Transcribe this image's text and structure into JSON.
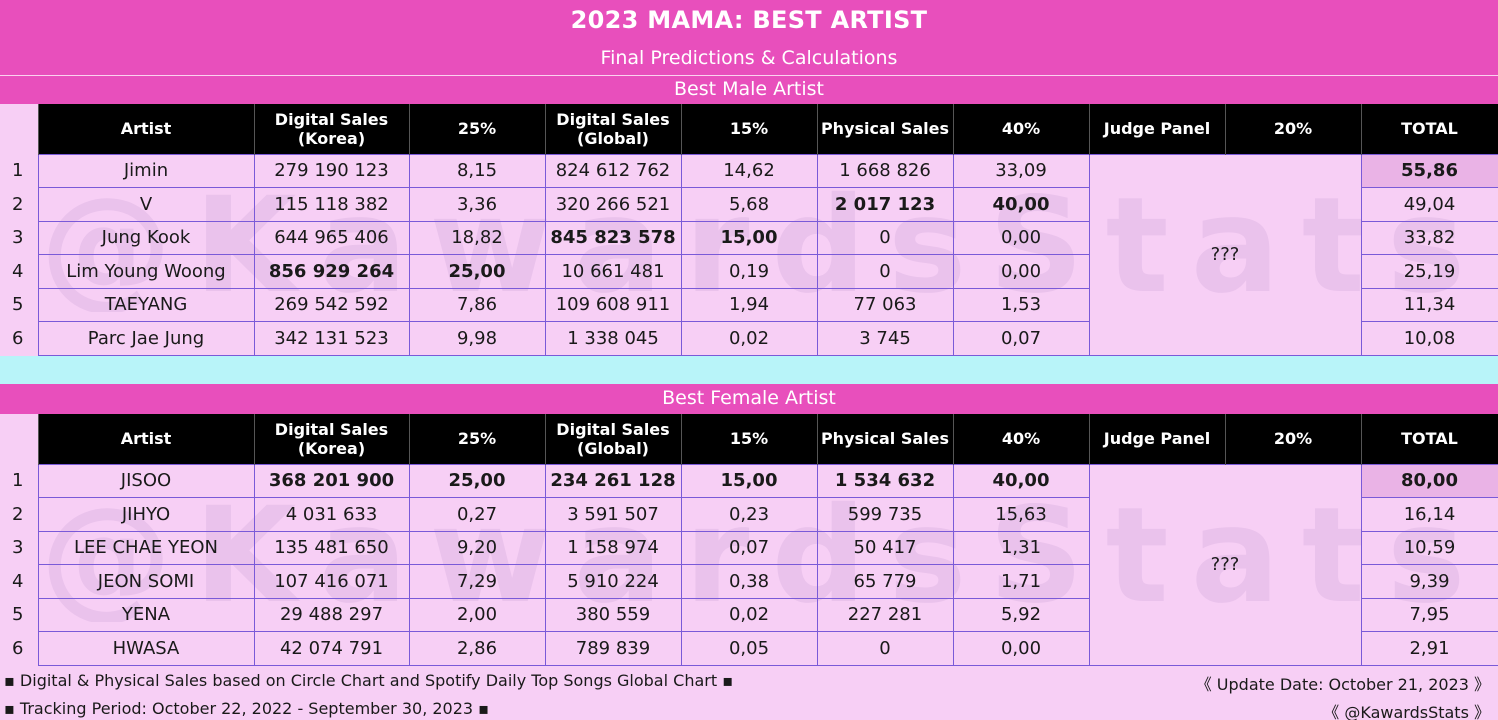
{
  "title": "2023 MAMA: BEST ARTIST",
  "subtitle": "Final Predictions & Calculations",
  "columns": [
    "Artist",
    "Digital Sales (Korea)",
    "25%",
    "Digital Sales (Global)",
    "15%",
    "Physical Sales",
    "40%",
    "Judge Panel",
    "20%",
    "TOTAL"
  ],
  "watermark": "@KawardsStats",
  "male": {
    "title": "Best Male Artist",
    "judge": "???",
    "rows": [
      {
        "rank": "1",
        "artist": "Jimin",
        "dk": "279 190 123",
        "p25": "8,15",
        "dg": "824 612 762",
        "p15": "14,62",
        "ph": "1 668 826",
        "p40": "33,09",
        "total": "55,86"
      },
      {
        "rank": "2",
        "artist": "V",
        "dk": "115 118 382",
        "p25": "3,36",
        "dg": "320 266 521",
        "p15": "5,68",
        "ph": "2 017 123",
        "p40": "40,00",
        "total": "49,04"
      },
      {
        "rank": "3",
        "artist": "Jung Kook",
        "dk": "644 965 406",
        "p25": "18,82",
        "dg": "845 823 578",
        "p15": "15,00",
        "ph": "0",
        "p40": "0,00",
        "total": "33,82"
      },
      {
        "rank": "4",
        "artist": "Lim Young Woong",
        "dk": "856 929 264",
        "p25": "25,00",
        "dg": "10 661 481",
        "p15": "0,19",
        "ph": "0",
        "p40": "0,00",
        "total": "25,19"
      },
      {
        "rank": "5",
        "artist": "TAEYANG",
        "dk": "269 542 592",
        "p25": "7,86",
        "dg": "109 608 911",
        "p15": "1,94",
        "ph": "77 063",
        "p40": "1,53",
        "total": "11,34"
      },
      {
        "rank": "6",
        "artist": "Parc Jae Jung",
        "dk": "342 131 523",
        "p25": "9,98",
        "dg": "1 338 045",
        "p15": "0,02",
        "ph": "3 745",
        "p40": "0,07",
        "total": "10,08"
      }
    ]
  },
  "female": {
    "title": "Best Female Artist",
    "judge": "???",
    "rows": [
      {
        "rank": "1",
        "artist": "JISOO",
        "dk": "368 201 900",
        "p25": "25,00",
        "dg": "234 261 128",
        "p15": "15,00",
        "ph": "1 534 632",
        "p40": "40,00",
        "total": "80,00"
      },
      {
        "rank": "2",
        "artist": "JIHYO",
        "dk": "4 031 633",
        "p25": "0,27",
        "dg": "3 591 507",
        "p15": "0,23",
        "ph": "599 735",
        "p40": "15,63",
        "total": "16,14"
      },
      {
        "rank": "3",
        "artist": "LEE CHAE YEON",
        "dk": "135 481 650",
        "p25": "9,20",
        "dg": "1 158 974",
        "p15": "0,07",
        "ph": "50 417",
        "p40": "1,31",
        "total": "10,59"
      },
      {
        "rank": "4",
        "artist": "JEON SOMI",
        "dk": "107 416 071",
        "p25": "7,29",
        "dg": "5 910 224",
        "p15": "0,38",
        "ph": "65 779",
        "p40": "1,71",
        "total": "9,39"
      },
      {
        "rank": "5",
        "artist": "YENA",
        "dk": "29 488 297",
        "p25": "2,00",
        "dg": "380 559",
        "p15": "0,02",
        "ph": "227 281",
        "p40": "5,92",
        "total": "7,95"
      },
      {
        "rank": "6",
        "artist": "HWASA",
        "dk": "42 074 791",
        "p25": "2,86",
        "dg": "789 839",
        "p15": "0,05",
        "ph": "0",
        "p40": "0,00",
        "total": "2,91"
      }
    ]
  },
  "footer": {
    "note1": "▪ Digital & Physical Sales based on Circle Chart and Spotify Daily Top Songs Global Chart ▪",
    "note2": "▪ Tracking Period: October 22, 2022 - September 30, 2023 ▪",
    "update": "《 Update Date: October 21, 2023 》",
    "handle": "《 @KawardsStats 》"
  },
  "colors": {
    "band": "#e84fbc",
    "background": "#f7cff5",
    "separator": "#b8f4f9",
    "header": "#000000",
    "highlight": "#eab3e6"
  }
}
